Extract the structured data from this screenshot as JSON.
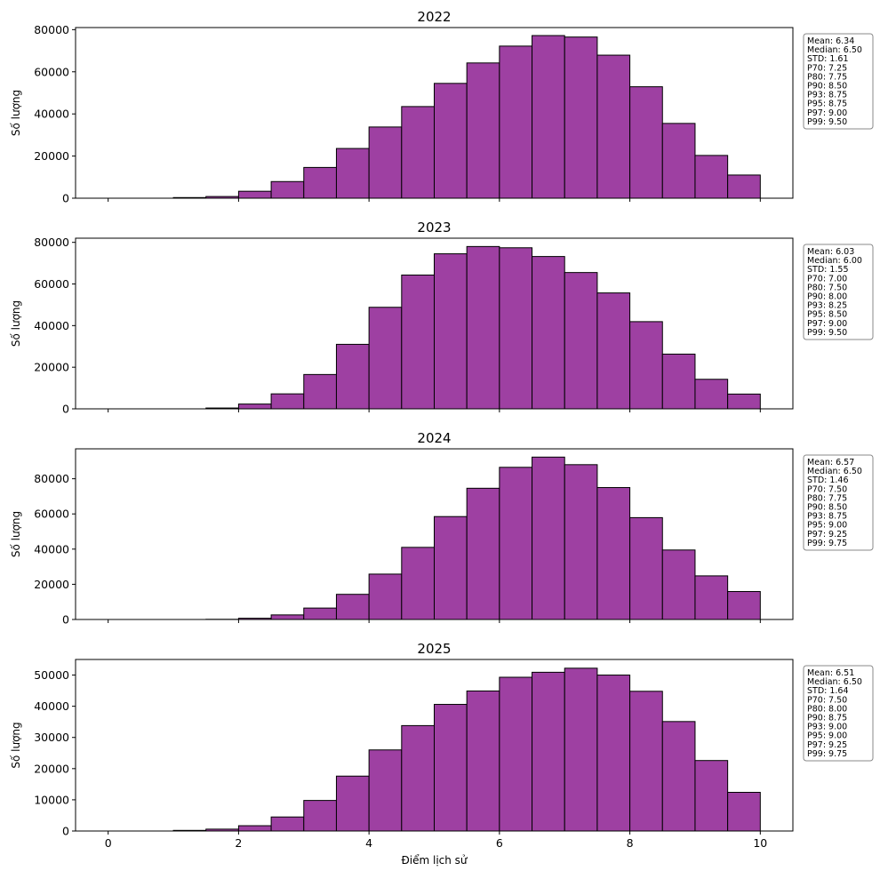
{
  "chart_data": [
    {
      "type": "bar",
      "title": "2022",
      "ylabel": "Số lượng",
      "xlabel": "",
      "xlim": [
        -0.5,
        10.5
      ],
      "ylim": [
        0,
        81000
      ],
      "x_ticks": [
        0,
        2,
        4,
        6,
        8,
        10
      ],
      "y_ticks": [
        0,
        20000,
        40000,
        60000,
        80000
      ],
      "bin_width": 0.5,
      "bin_edges": [
        0,
        0.5,
        1,
        1.5,
        2,
        2.5,
        3,
        3.5,
        4,
        4.5,
        5,
        5.5,
        6,
        6.5,
        7,
        7.5,
        8,
        8.5,
        9,
        9.5,
        10
      ],
      "values": [
        0,
        0,
        300,
        800,
        3300,
        7900,
        14600,
        23600,
        33800,
        43500,
        54500,
        64200,
        72200,
        77200,
        76500,
        67900,
        52900,
        35500,
        20300,
        11000
      ],
      "stats": [
        "Mean: 6.34",
        "Median: 6.50",
        "STD: 1.61",
        "P70: 7.25",
        "P80: 7.75",
        "P90: 8.50",
        "P93: 8.75",
        "P95: 8.75",
        "P97: 9.00",
        "P99: 9.50"
      ]
    },
    {
      "type": "bar",
      "title": "2023",
      "ylabel": "Số lượng",
      "xlabel": "",
      "xlim": [
        -0.5,
        10.5
      ],
      "ylim": [
        0,
        82000
      ],
      "x_ticks": [
        0,
        2,
        4,
        6,
        8,
        10
      ],
      "y_ticks": [
        0,
        20000,
        40000,
        60000,
        80000
      ],
      "bin_width": 0.5,
      "bin_edges": [
        0,
        0.5,
        1,
        1.5,
        2,
        2.5,
        3,
        3.5,
        4,
        4.5,
        5,
        5.5,
        6,
        6.5,
        7,
        7.5,
        8,
        8.5,
        9,
        9.5,
        10
      ],
      "values": [
        0,
        0,
        0,
        400,
        2300,
        7200,
        16500,
        31000,
        48800,
        64300,
        74500,
        78000,
        77400,
        73200,
        65500,
        55700,
        41900,
        26300,
        14200,
        7100
      ],
      "stats": [
        "Mean: 6.03",
        "Median: 6.00",
        "STD: 1.55",
        "P70: 7.00",
        "P80: 7.50",
        "P90: 8.00",
        "P93: 8.25",
        "P95: 8.50",
        "P97: 9.00",
        "P99: 9.50"
      ]
    },
    {
      "type": "bar",
      "title": "2024",
      "ylabel": "Số lượng",
      "xlabel": "",
      "xlim": [
        -0.5,
        10.5
      ],
      "ylim": [
        0,
        97000
      ],
      "x_ticks": [
        0,
        2,
        4,
        6,
        8,
        10
      ],
      "y_ticks": [
        0,
        20000,
        40000,
        60000,
        80000
      ],
      "bin_width": 0.5,
      "bin_edges": [
        0,
        0.5,
        1,
        1.5,
        2,
        2.5,
        3,
        3.5,
        4,
        4.5,
        5,
        5.5,
        6,
        6.5,
        7,
        7.5,
        8,
        8.5,
        9,
        9.5,
        10
      ],
      "values": [
        0,
        0,
        0,
        100,
        700,
        2600,
        6500,
        14300,
        25800,
        41000,
        58500,
        74600,
        86500,
        92300,
        88000,
        75000,
        57900,
        39500,
        24800,
        15900
      ],
      "stats": [
        "Mean: 6.57",
        "Median: 6.50",
        "STD: 1.46",
        "P70: 7.50",
        "P80: 7.75",
        "P90: 8.50",
        "P93: 8.75",
        "P95: 9.00",
        "P97: 9.25",
        "P99: 9.75"
      ]
    },
    {
      "type": "bar",
      "title": "2025",
      "ylabel": "Số lượng",
      "xlabel": "Điểm lịch sử",
      "xlim": [
        -0.5,
        10.5
      ],
      "ylim": [
        0,
        55000
      ],
      "x_ticks": [
        0,
        2,
        4,
        6,
        8,
        10
      ],
      "y_ticks": [
        0,
        10000,
        20000,
        30000,
        40000,
        50000
      ],
      "bin_width": 0.5,
      "bin_edges": [
        0,
        0.5,
        1,
        1.5,
        2,
        2.5,
        3,
        3.5,
        4,
        4.5,
        5,
        5.5,
        6,
        6.5,
        7,
        7.5,
        8,
        8.5,
        9,
        9.5,
        10
      ],
      "values": [
        0,
        0,
        200,
        600,
        1700,
        4500,
        9800,
        17600,
        26000,
        33800,
        40600,
        44900,
        49300,
        50900,
        52200,
        50000,
        44800,
        35100,
        22600,
        12400
      ],
      "stats": [
        "Mean: 6.51",
        "Median: 6.50",
        "STD: 1.64",
        "P70: 7.50",
        "P80: 8.00",
        "P90: 8.75",
        "P93: 9.00",
        "P95: 9.00",
        "P97: 9.25",
        "P99: 9.75"
      ]
    }
  ],
  "colors": {
    "bar_fill": "#9e40a2",
    "bar_edge": "#000000",
    "stats_border": "#888888"
  }
}
